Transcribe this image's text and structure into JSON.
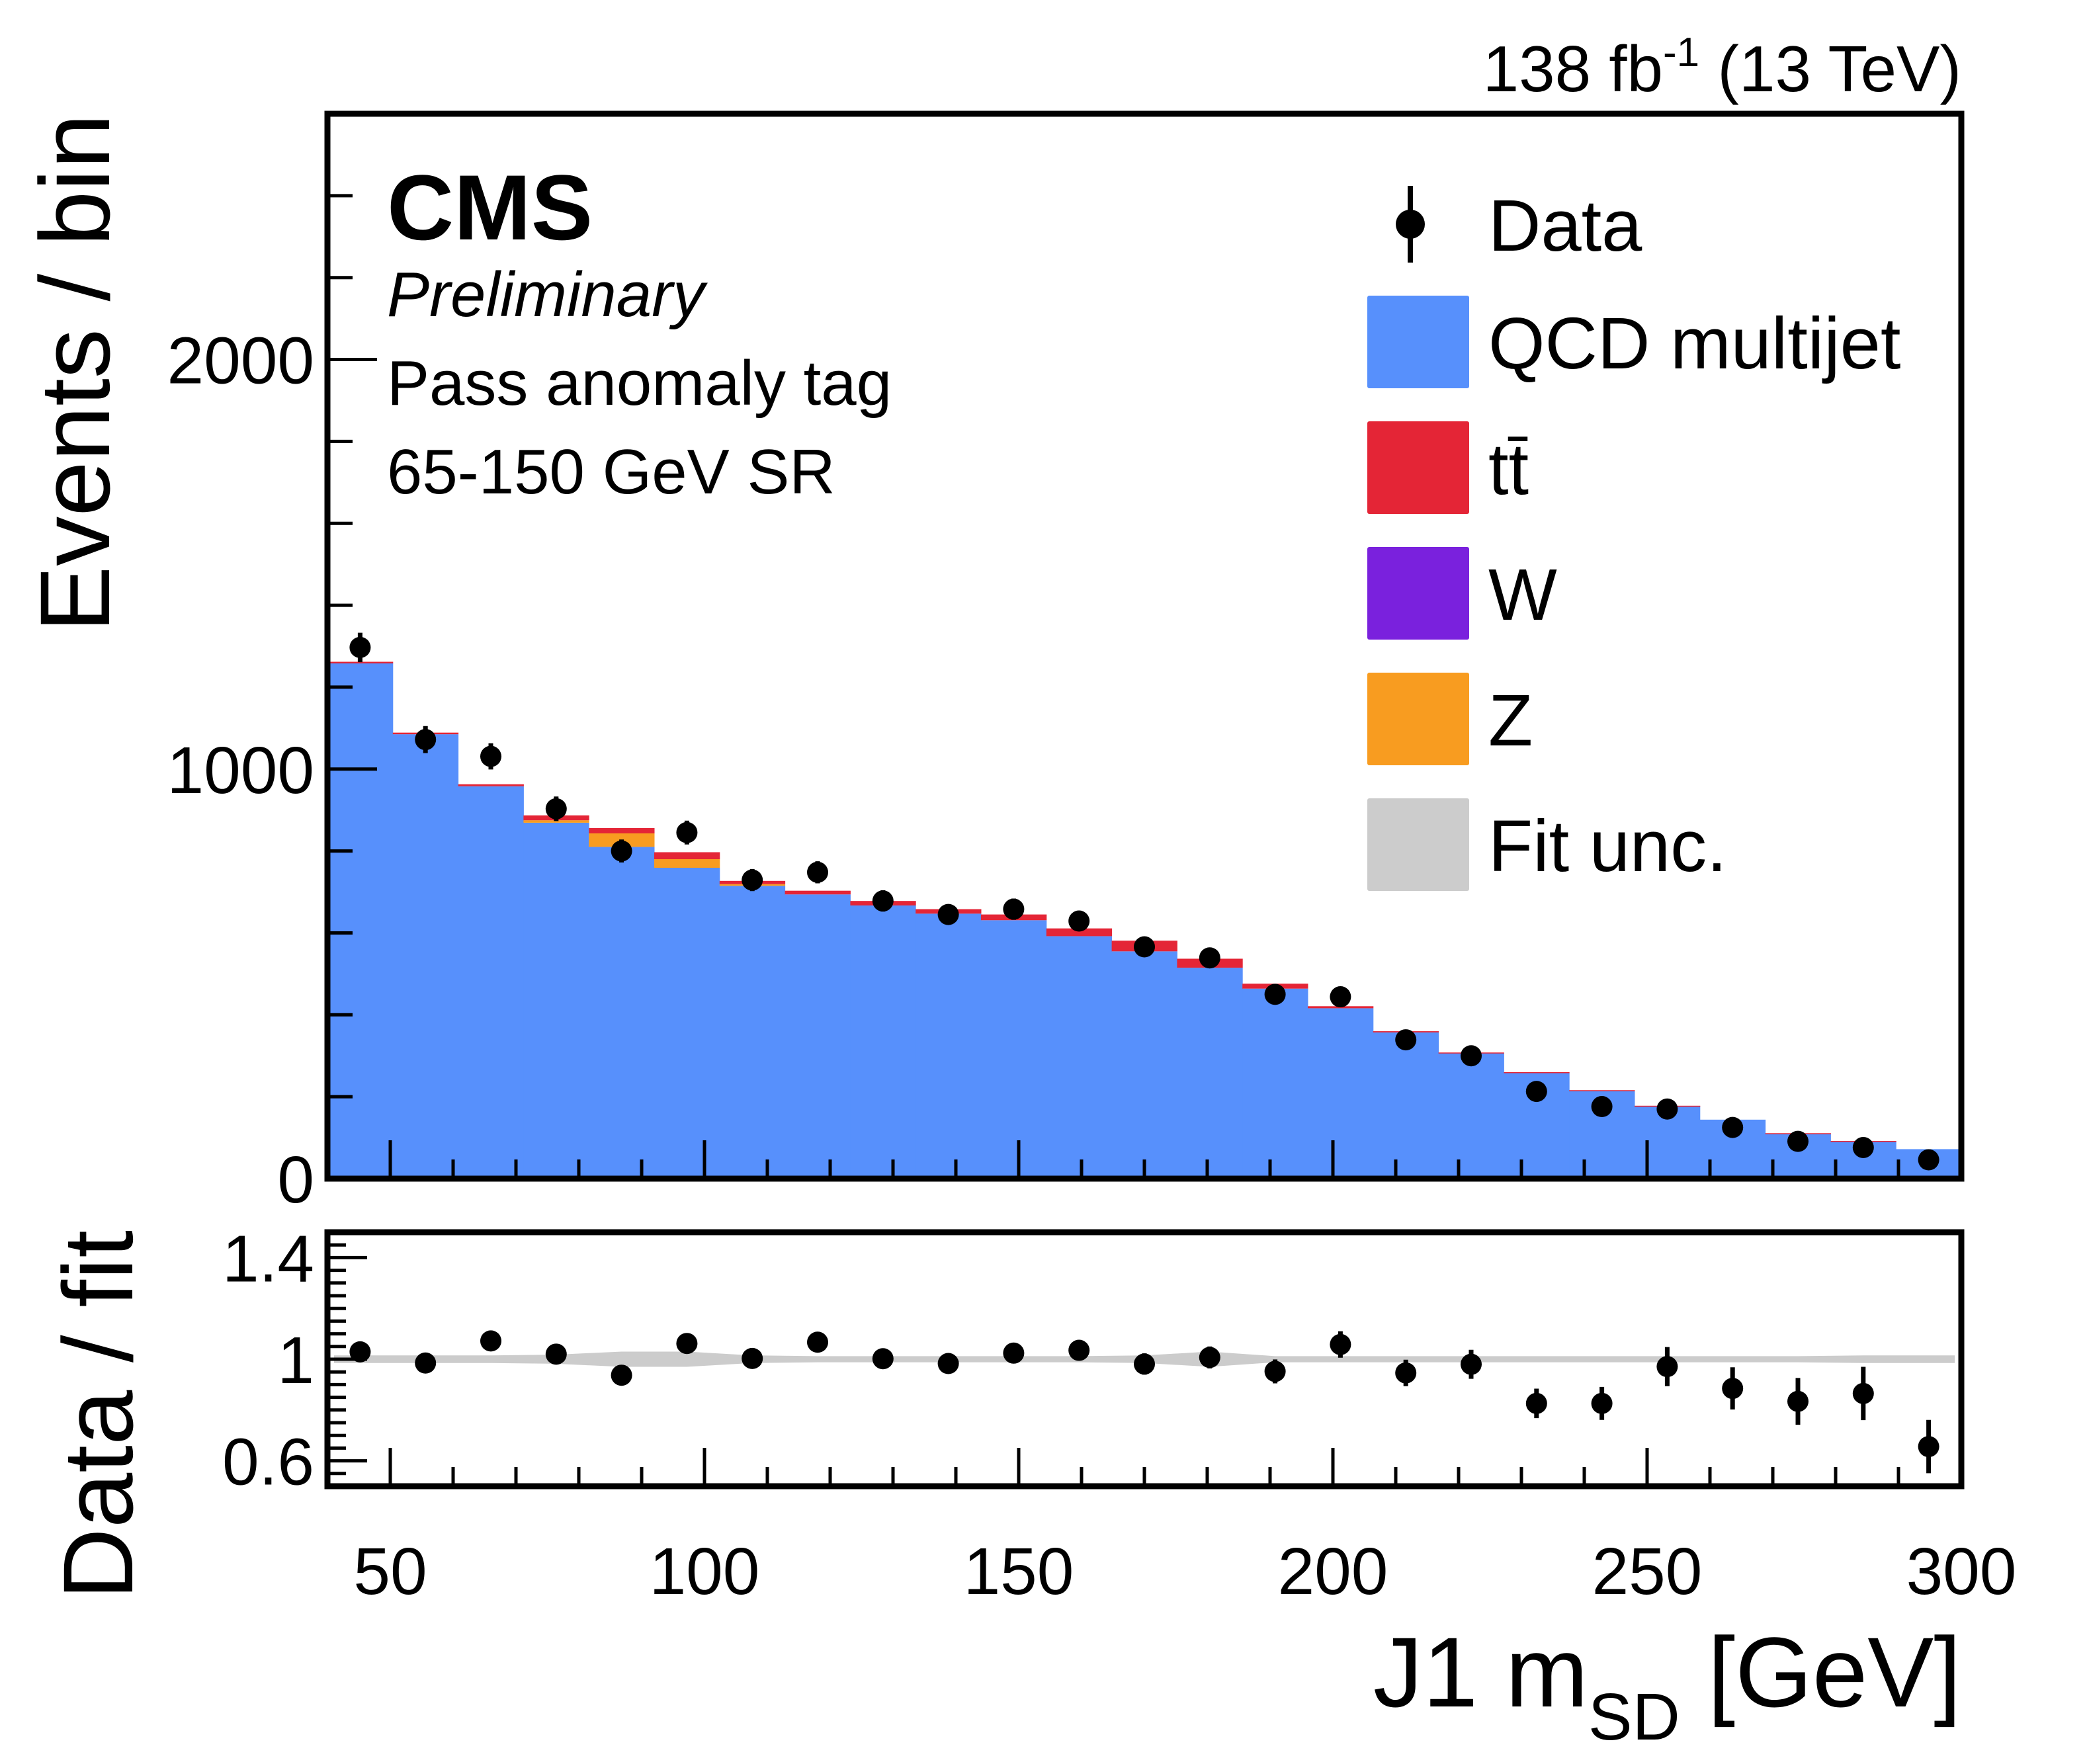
{
  "chart_data": [
    {
      "type": "bar",
      "subtype": "stacked-histogram-with-data-points",
      "title": "",
      "lumi_label": "138 fb",
      "lumi_exponent": "-1",
      "energy_label": " (13 TeV)",
      "experiment": "CMS",
      "status": "Preliminary",
      "annotations": [
        "Pass anomaly tag",
        "65-150 GeV SR"
      ],
      "xlabel": "J1 m",
      "xlabel_sub": "SD",
      "xlabel_unit": " [GeV]",
      "ylabel": "Events / bin",
      "xlim": [
        40,
        300
      ],
      "ylim": [
        0,
        2600
      ],
      "bin_edges": [
        40,
        50.4,
        60.8,
        71.2,
        81.6,
        92,
        102.4,
        112.8,
        123.2,
        133.6,
        144,
        154.4,
        164.8,
        175.2,
        185.6,
        196,
        206.4,
        216.8,
        227.2,
        237.6,
        248,
        258.4,
        268.8,
        279.2,
        289.6,
        300
      ],
      "x_ticks": [
        50,
        100,
        150,
        200,
        250,
        300
      ],
      "x_tick_labels": [
        "50",
        "100",
        "150",
        "200",
        "250",
        "300"
      ],
      "y_ticks": [
        0,
        1000,
        2000
      ],
      "y_tick_labels": [
        "0",
        "1000",
        "2000"
      ],
      "grid": false,
      "legend_position": "top-right",
      "series": [
        {
          "name": "QCD multijet",
          "color": "#5790fc",
          "values": [
            1258,
            1085,
            958,
            869,
            810,
            759,
            715,
            694,
            667,
            647,
            631,
            592,
            555,
            515,
            464,
            416,
            357,
            306,
            258,
            215,
            177,
            144,
            110,
            91,
            72
          ]
        },
        {
          "name": "tt̄",
          "color": "#e42536",
          "values": [
            4,
            4,
            5,
            12,
            13,
            17,
            8,
            9,
            11,
            11,
            14,
            19,
            26,
            22,
            12,
            5,
            3,
            2,
            2,
            1,
            1,
            0,
            1,
            1,
            0
          ]
        },
        {
          "name": "W",
          "color": "#7a21dd",
          "values": [
            0,
            0,
            0,
            0,
            0,
            0,
            0,
            0,
            0,
            0,
            0,
            0,
            0,
            0,
            0,
            0,
            0,
            0,
            0,
            0,
            0,
            0,
            0,
            0,
            0
          ]
        },
        {
          "name": "Z",
          "color": "#f89c20",
          "values": [
            0,
            0,
            0,
            6,
            33,
            21,
            4,
            0,
            0,
            0,
            0,
            0,
            0,
            0,
            0,
            0,
            0,
            0,
            0,
            0,
            0,
            0,
            0,
            0,
            0
          ]
        }
      ],
      "data_points": {
        "name": "Data",
        "color": "#000000",
        "values": [
          1297,
          1072,
          1031,
          903,
          800,
          845,
          729,
          748,
          678,
          645,
          658,
          629,
          566,
          539,
          450,
          444,
          339,
          300,
          213,
          176,
          170,
          125,
          91,
          76,
          46
        ],
        "errors": [
          36,
          33,
          32,
          30,
          28,
          29,
          27,
          27,
          26,
          25,
          26,
          25,
          24,
          23,
          21,
          21,
          18,
          17,
          15,
          13,
          13,
          11,
          10,
          9,
          7
        ]
      },
      "legend": [
        {
          "label": "Data",
          "marker": "point-with-error-bar",
          "color": "#000000"
        },
        {
          "label": "QCD multijet",
          "marker": "box",
          "color": "#5790fc"
        },
        {
          "label": "tt̄",
          "marker": "box",
          "color": "#e42536"
        },
        {
          "label": "W",
          "marker": "box",
          "color": "#7a21dd"
        },
        {
          "label": "Z",
          "marker": "box",
          "color": "#f89c20"
        },
        {
          "label": "Fit unc.",
          "marker": "box",
          "color": "#cccccc"
        }
      ]
    },
    {
      "type": "scatter",
      "subtype": "ratio-panel",
      "ylabel": "Data / fit",
      "xlabel": "J1 m_SD [GeV]",
      "xlim": [
        40,
        300
      ],
      "ylim": [
        0.5,
        1.5
      ],
      "y_ticks": [
        0.6,
        1,
        1.4
      ],
      "y_tick_labels": [
        "0.6",
        "1",
        "1.4"
      ],
      "reference_line": 1,
      "band_color": "#cccccc",
      "band_halfwidth": [
        0.015,
        0.015,
        0.015,
        0.018,
        0.03,
        0.03,
        0.015,
        0.012,
        0.012,
        0.012,
        0.012,
        0.012,
        0.015,
        0.03,
        0.012,
        0.012,
        0.012,
        0.012,
        0.012,
        0.012,
        0.012,
        0.012,
        0.012,
        0.015,
        0.015
      ],
      "x": [
        45.2,
        55.6,
        66,
        76.4,
        86.8,
        97.2,
        107.6,
        118,
        128.4,
        138.8,
        149.2,
        159.6,
        170,
        180.4,
        190.8,
        201.2,
        211.6,
        222,
        232.4,
        242.8,
        253.2,
        263.6,
        274,
        284.4,
        294.8
      ],
      "values": [
        1.029,
        0.985,
        1.072,
        1.02,
        0.937,
        1.062,
        1.003,
        1.067,
        1.002,
        0.983,
        1.024,
        1.035,
        0.981,
        1.007,
        0.952,
        1.058,
        0.946,
        0.98,
        0.826,
        0.826,
        0.971,
        0.885,
        0.834,
        0.865,
        0.656
      ],
      "errors": [
        0.028,
        0.03,
        0.031,
        0.033,
        0.035,
        0.034,
        0.037,
        0.036,
        0.038,
        0.039,
        0.039,
        0.04,
        0.042,
        0.043,
        0.047,
        0.052,
        0.052,
        0.057,
        0.058,
        0.065,
        0.077,
        0.083,
        0.092,
        0.105,
        0.105
      ]
    }
  ]
}
